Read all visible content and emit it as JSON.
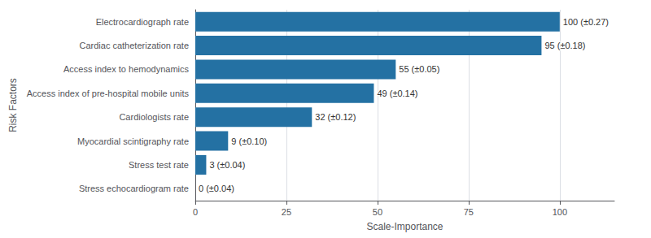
{
  "chart_data": {
    "type": "bar",
    "orientation": "horizontal",
    "xlabel": "Scale-Importance",
    "ylabel": "Risk Factors",
    "categories": [
      "Stress echocardiogram rate",
      "Stress test rate",
      "Myocardial scintigraphy rate",
      "Cardiologists rate",
      "Access index of pre-hospital mobile units",
      "Access index to hemodynamics",
      "Cardiac catheterization rate",
      "Electrocardiograph rate"
    ],
    "values": [
      0,
      3,
      9,
      32,
      49,
      55,
      95,
      100
    ],
    "value_labels": [
      "0 (±0.04)",
      "3 (±0.04)",
      "9 (±0.10)",
      "32 (±0.12)",
      "49 (±0.14)",
      "55 (±0.05)",
      "95 (±0.18)",
      "100 (±0.27)"
    ],
    "color": "#2471a3",
    "xlim": [
      0,
      115
    ],
    "xticks": [
      0,
      25,
      50,
      75,
      100
    ],
    "grid": true
  }
}
